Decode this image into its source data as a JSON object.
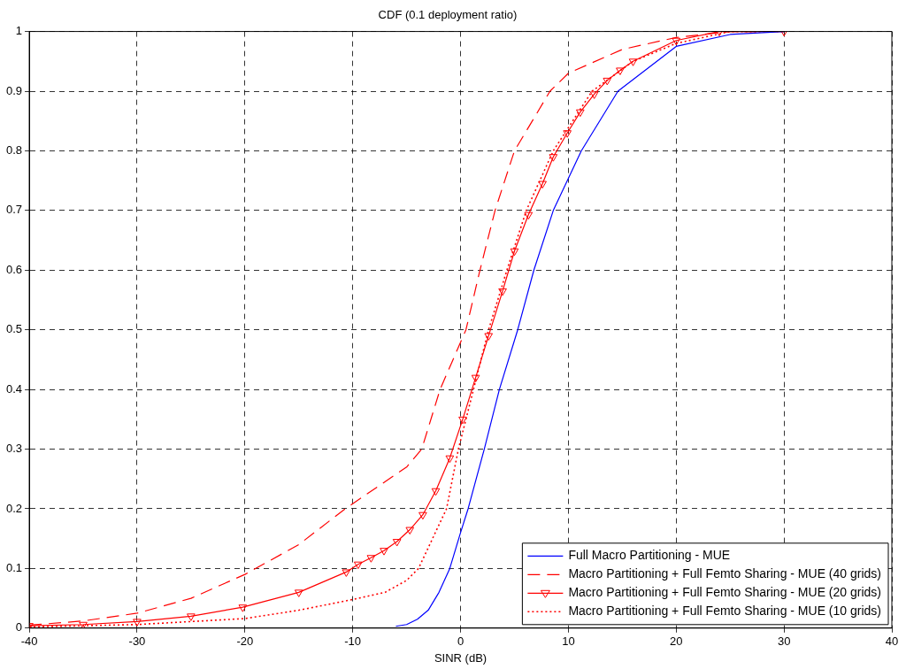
{
  "chart_data": {
    "type": "line",
    "title": "CDF (0.1 deployment ratio)",
    "xlabel": "SINR (dB)",
    "xlim": [
      -40,
      40
    ],
    "xticks": [
      -40,
      -30,
      -20,
      -10,
      0,
      10,
      20,
      30,
      40
    ],
    "ylim": [
      0,
      1
    ],
    "yticks": [
      0,
      0.1,
      0.2,
      0.3,
      0.4,
      0.5,
      0.6,
      0.7,
      0.8,
      0.9,
      1
    ],
    "grid": true,
    "legend": "bottom right",
    "series": [
      {
        "name": "Full Macro Partitioning - MUE",
        "color": "#0000ff",
        "line_style": "solid",
        "marker": "none",
        "x": [
          -6,
          -5,
          -4,
          -3,
          -2,
          -1,
          0,
          0.7,
          2.2,
          3.6,
          5.3,
          6.8,
          8.6,
          11.2,
          14.6,
          20,
          25,
          30
        ],
        "values": [
          0.003,
          0.006,
          0.015,
          0.03,
          0.06,
          0.1,
          0.16,
          0.2,
          0.3,
          0.4,
          0.5,
          0.6,
          0.7,
          0.8,
          0.9,
          0.975,
          0.995,
          1
        ]
      },
      {
        "name": "Macro Partitioning + Full Femto Sharing - MUE (40 grids)",
        "color": "#ff0000",
        "line_style": "dashed",
        "marker": "none",
        "x": [
          -40,
          -35,
          -30,
          -25,
          -20,
          -15,
          -10.7,
          -5,
          -3.6,
          -1.9,
          0.5,
          1.8,
          3.2,
          5,
          8.3,
          10,
          15,
          20,
          25,
          30
        ],
        "values": [
          0.005,
          0.012,
          0.025,
          0.05,
          0.09,
          0.14,
          0.2,
          0.27,
          0.3,
          0.4,
          0.5,
          0.6,
          0.7,
          0.8,
          0.9,
          0.93,
          0.97,
          0.99,
          1,
          1
        ]
      },
      {
        "name": "Macro Partitioning + Full Femto Sharing - MUE (20 grids)",
        "color": "#ff0000",
        "line_style": "solid",
        "marker": "triangle",
        "x": [
          -40,
          -35,
          -30,
          -25,
          -20.2,
          -15,
          -10.6,
          -9.5,
          -8.3,
          -7.1,
          -5.9,
          -4.7,
          -3.5,
          -2.3,
          -1,
          0.2,
          1.4,
          2.6,
          3.9,
          5,
          6.3,
          7.6,
          8.6,
          9.9,
          11.1,
          12.4,
          13.6,
          14.8,
          16,
          20,
          24,
          30
        ],
        "values": [
          0.004,
          0.006,
          0.011,
          0.02,
          0.035,
          0.06,
          0.094,
          0.107,
          0.118,
          0.13,
          0.145,
          0.165,
          0.19,
          0.23,
          0.285,
          0.35,
          0.42,
          0.49,
          0.565,
          0.632,
          0.693,
          0.745,
          0.79,
          0.83,
          0.865,
          0.895,
          0.918,
          0.935,
          0.95,
          0.985,
          1,
          1
        ]
      },
      {
        "name": "Macro Partitioning + Full Femto Sharing - MUE (10 grids)",
        "color": "#ff0000",
        "line_style": "dotted",
        "marker": "none",
        "x": [
          -40,
          -30,
          -20,
          -15,
          -10,
          -7,
          -5,
          -3.9,
          -1.3,
          -0.2,
          1.2,
          2.6,
          4.3,
          6.1,
          8.6,
          12.2,
          16,
          20,
          25,
          30
        ],
        "values": [
          0.002,
          0.006,
          0.016,
          0.03,
          0.048,
          0.06,
          0.08,
          0.1,
          0.2,
          0.3,
          0.4,
          0.5,
          0.6,
          0.7,
          0.8,
          0.9,
          0.95,
          0.98,
          1,
          1
        ]
      }
    ]
  }
}
